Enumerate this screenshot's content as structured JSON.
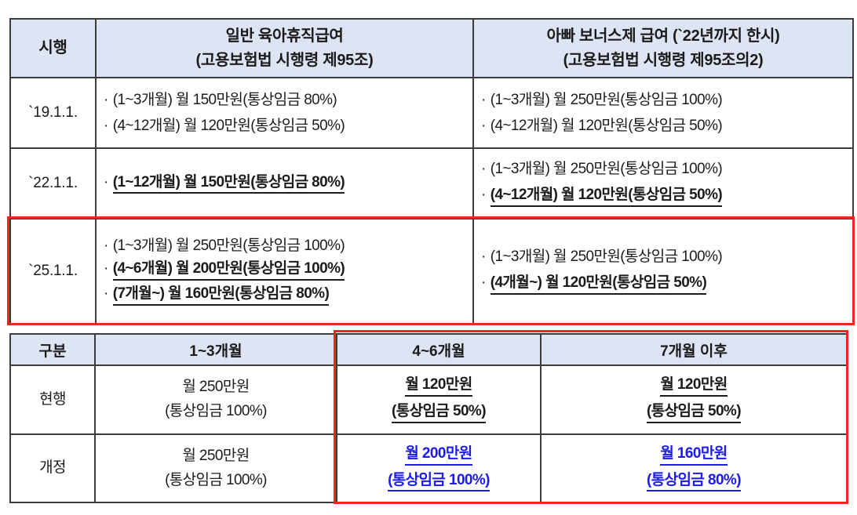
{
  "ui": {
    "bullet": "·"
  },
  "colors": {
    "header_bg": "#dde4f3",
    "border": "#3c3c3c",
    "highlight_red": "#f1271b",
    "revised_blue": "#1b1bef",
    "text": "#1b1b1b"
  },
  "table1": {
    "header": {
      "col_date": "시행",
      "col_general_line1": "일반 육아휴직급여",
      "col_general_line2": "(고용보험법 시행령 제95조)",
      "col_bonus_line1": "아빠 보너스제 급여 (`22년까지 한시)",
      "col_bonus_line2": "(고용보험법 시행령 제95조의2)"
    },
    "rows": [
      {
        "date": "`19.1.1.",
        "general": [
          "(1~3개월) 월 150만원(통상임금 80%)",
          "(4~12개월) 월 120만원(통상임금 50%)"
        ],
        "bonus": [
          "(1~3개월) 월 250만원(통상임금 100%)",
          "(4~12개월) 월 120만원(통상임금 50%)"
        ]
      },
      {
        "date": "`22.1.1.",
        "general": [
          "(1~12개월) 월 150만원(통상임금 80%)"
        ],
        "bonus": [
          "(1~3개월) 월 250만원(통상임금 100%)",
          "(4~12개월) 월 120만원(통상임금 50%)"
        ]
      },
      {
        "date": "`25.1.1.",
        "general": [
          "(1~3개월) 월 250만원(통상임금 100%)",
          "(4~6개월) 월 200만원(통상임금 100%)",
          "(7개월~) 월 160만원(통상임금 80%)"
        ],
        "bonus": [
          "(1~3개월) 월 250만원(통상임금 100%)",
          "(4개월~) 월 120만원(통상임금 50%)"
        ]
      }
    ]
  },
  "table2": {
    "headers": [
      "구분",
      "1~3개월",
      "4~6개월",
      "7개월 이후"
    ],
    "rows": [
      {
        "label": "현행",
        "m1_3": [
          "월 250만원",
          "(통상임금 100%)"
        ],
        "m4_6": [
          "월 120만원",
          "(통상임금 50%)"
        ],
        "m7plus": [
          "월 120만원",
          "(통상임금 50%)"
        ]
      },
      {
        "label": "개정",
        "m1_3": [
          "월 250만원",
          "(통상임금 100%)"
        ],
        "m4_6": [
          "월 200만원",
          "(통상임금 100%)"
        ],
        "m7plus": [
          "월 160만원",
          "(통상임금 80%)"
        ]
      }
    ]
  }
}
